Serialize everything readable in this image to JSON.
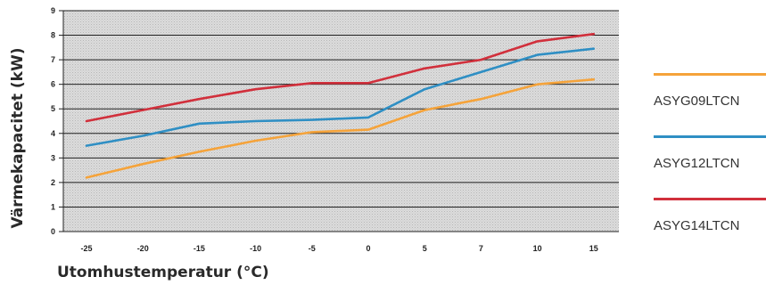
{
  "chart_data": {
    "type": "line",
    "title": "",
    "xlabel": "Utomhustemperatur (°C)",
    "ylabel": "Värmekapacitet (kW)",
    "categories": [
      "-25",
      "-20",
      "-15",
      "-10",
      "-5",
      "0",
      "5",
      "7",
      "10",
      "15"
    ],
    "ylim": [
      0,
      9
    ],
    "yticks": [
      "0",
      "1",
      "2",
      "3",
      "4",
      "5",
      "6",
      "7",
      "8",
      "9"
    ],
    "grid": true,
    "legend_position": "right",
    "series": [
      {
        "name": "ASYG09LTCN",
        "color": "#f5a33a",
        "values": [
          2.2,
          2.75,
          3.25,
          3.7,
          4.05,
          4.15,
          4.95,
          5.4,
          6.0,
          6.2
        ]
      },
      {
        "name": "ASYG12LTCN",
        "color": "#2f8fc4",
        "values": [
          3.5,
          3.9,
          4.4,
          4.5,
          4.55,
          4.65,
          5.8,
          6.5,
          7.2,
          7.45
        ]
      },
      {
        "name": "ASYG14LTCN",
        "color": "#d1303c",
        "values": [
          4.5,
          4.95,
          5.4,
          5.8,
          6.05,
          6.05,
          6.65,
          7.0,
          7.75,
          8.05
        ]
      }
    ]
  }
}
